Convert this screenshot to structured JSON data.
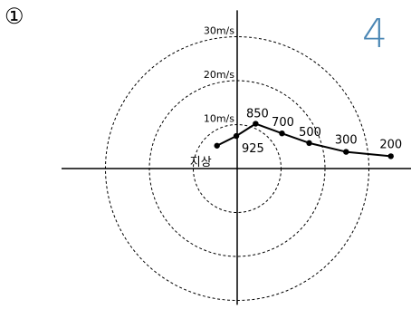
{
  "option_marker": "①",
  "answer_mark": "4",
  "colors": {
    "answer_mark": "#4a86b4",
    "ink": "#000000"
  },
  "chart_data": {
    "type": "line",
    "subtype": "hodograph",
    "title": "",
    "xlabel": "",
    "ylabel": "",
    "unit": "m/s",
    "rings": [
      {
        "speed": 10,
        "label": "10m/s"
      },
      {
        "speed": 20,
        "label": "20m/s"
      },
      {
        "speed": 30,
        "label": "30m/s"
      }
    ],
    "xlim": [
      -40,
      40
    ],
    "ylim": [
      -31,
      36
    ],
    "grid": false,
    "legend": "none",
    "points": [
      {
        "label": "지상",
        "u": -4.6,
        "v": 5.2
      },
      {
        "label": "925",
        "u": -0.2,
        "v": 7.4
      },
      {
        "label": "850",
        "u": 4.2,
        "v": 10.2
      },
      {
        "label": "700",
        "u": 10.2,
        "v": 8.0
      },
      {
        "label": "500",
        "u": 16.4,
        "v": 5.8
      },
      {
        "label": "300",
        "u": 24.8,
        "v": 3.8
      },
      {
        "label": "200",
        "u": 35.0,
        "v": 2.8
      }
    ]
  }
}
